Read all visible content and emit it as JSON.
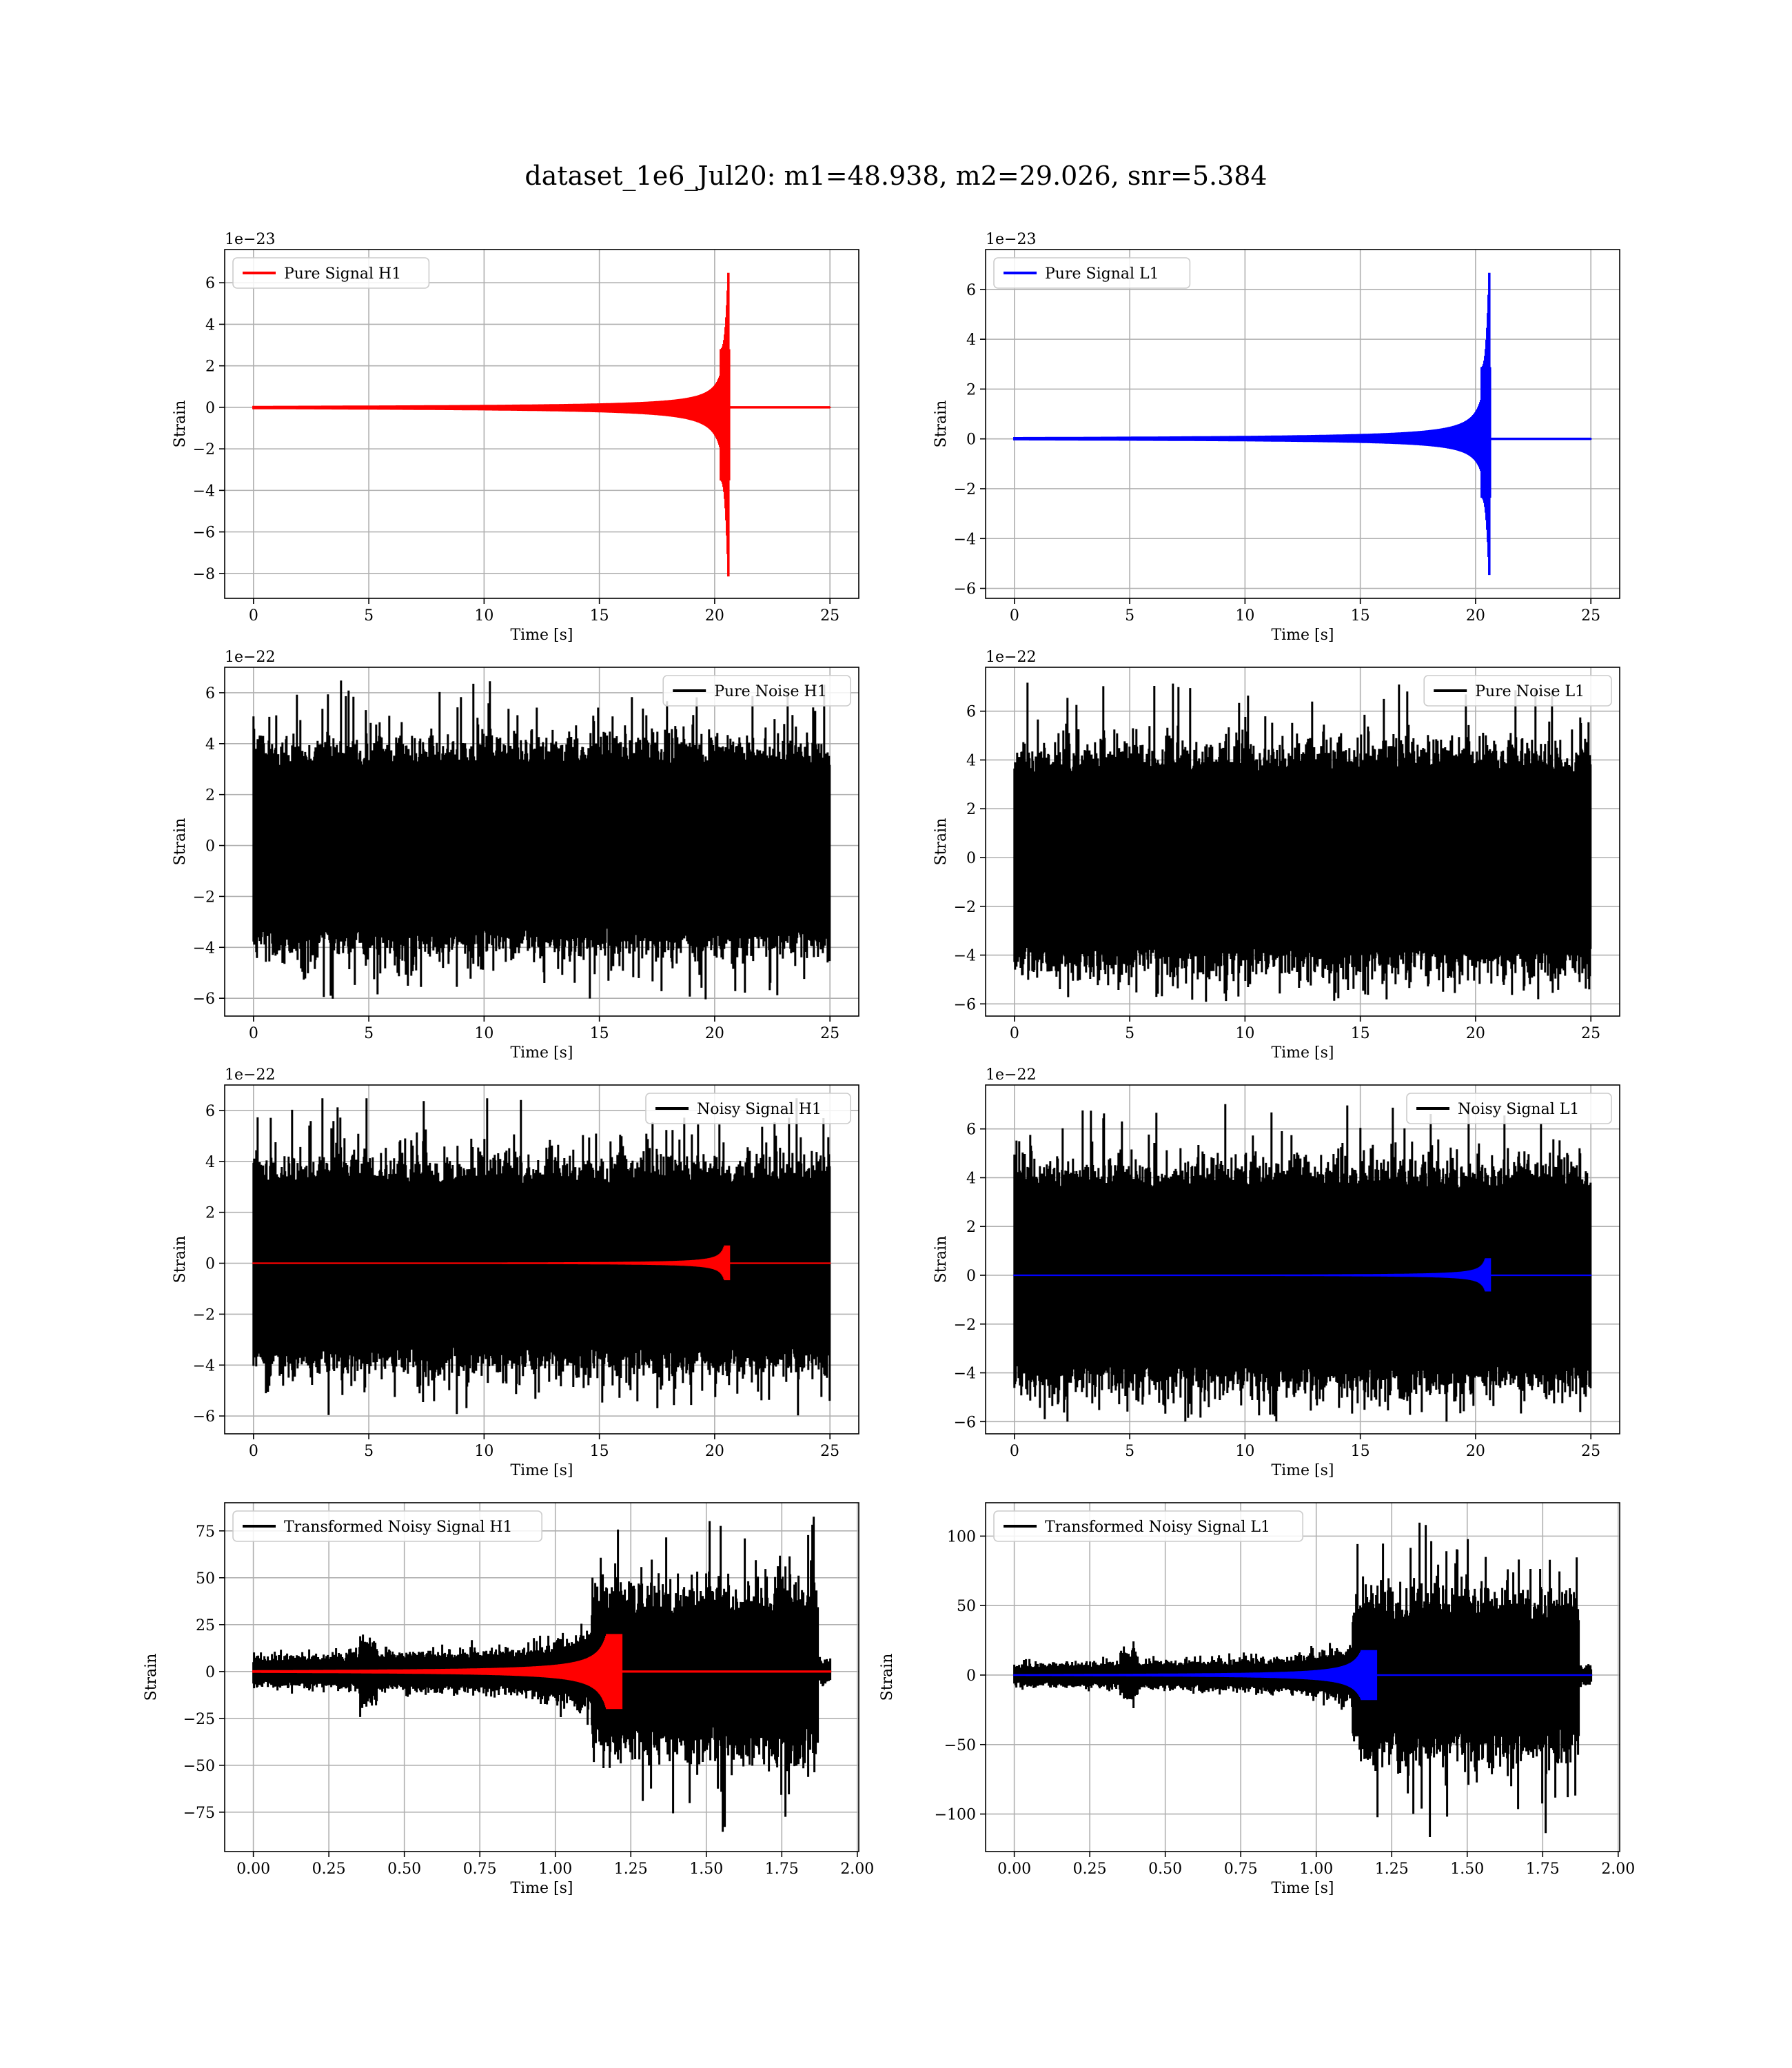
{
  "figure": {
    "title": "dataset_1e6_Jul20: m1=48.938, m2=29.026, snr=5.384"
  },
  "colors": {
    "h1": "#ff0000",
    "l1": "#0000ff",
    "noise": "#000000"
  },
  "chart_data": [
    {
      "id": "pure-signal-h1",
      "type": "line",
      "detector": "H1",
      "kind": "signal",
      "legend": "Pure Signal H1",
      "legend_position": "upper-left",
      "xlabel": "Time [s]",
      "ylabel": "Strain",
      "offset_text": "1e−23",
      "xlim": [
        -1.25,
        26.25
      ],
      "ylim": [
        -9.2,
        7.6
      ],
      "xticks": [
        0,
        5,
        10,
        15,
        20,
        25
      ],
      "yticks": [
        -8,
        -6,
        -4,
        -2,
        0,
        2,
        4,
        6
      ],
      "yticklabels": [
        "−8",
        "−6",
        "−4",
        "−2",
        "0",
        "2",
        "4",
        "6"
      ],
      "x_range": [
        0,
        25
      ],
      "merger_time": 20.6,
      "peak_positive": 7.0,
      "peak_negative": -8.8,
      "grid": true
    },
    {
      "id": "pure-signal-l1",
      "type": "line",
      "detector": "L1",
      "kind": "signal",
      "legend": "Pure Signal L1",
      "legend_position": "upper-left",
      "xlabel": "Time [s]",
      "ylabel": "Strain",
      "offset_text": "1e−23",
      "xlim": [
        -1.25,
        26.25
      ],
      "ylim": [
        -6.4,
        7.6
      ],
      "xticks": [
        0,
        5,
        10,
        15,
        20,
        25
      ],
      "yticks": [
        -6,
        -4,
        -2,
        0,
        2,
        4,
        6
      ],
      "yticklabels": [
        "−6",
        "−4",
        "−2",
        "0",
        "2",
        "4",
        "6"
      ],
      "x_range": [
        0,
        25
      ],
      "merger_time": 20.6,
      "peak_positive": 7.2,
      "peak_negative": -5.9,
      "grid": true
    },
    {
      "id": "pure-noise-h1",
      "type": "line",
      "detector": "H1",
      "kind": "noise",
      "legend": "Pure Noise H1",
      "legend_position": "upper-right",
      "xlabel": "Time [s]",
      "ylabel": "Strain",
      "offset_text": "1e−22",
      "xlim": [
        -1.25,
        26.25
      ],
      "ylim": [
        -6.7,
        7.0
      ],
      "xticks": [
        0,
        5,
        10,
        15,
        20,
        25
      ],
      "yticks": [
        -6,
        -4,
        -2,
        0,
        2,
        4,
        6
      ],
      "yticklabels": [
        "−6",
        "−4",
        "−2",
        "0",
        "2",
        "4",
        "6"
      ],
      "x_range": [
        0,
        25
      ],
      "noise_max": 6.5,
      "noise_min": -6.1,
      "grid": true
    },
    {
      "id": "pure-noise-l1",
      "type": "line",
      "detector": "L1",
      "kind": "noise",
      "legend": "Pure Noise L1",
      "legend_position": "upper-right",
      "xlabel": "Time [s]",
      "ylabel": "Strain",
      "offset_text": "1e−22",
      "xlim": [
        -1.25,
        26.25
      ],
      "ylim": [
        -6.5,
        7.8
      ],
      "xticks": [
        0,
        5,
        10,
        15,
        20,
        25
      ],
      "yticks": [
        -6,
        -4,
        -2,
        0,
        2,
        4,
        6
      ],
      "yticklabels": [
        "−6",
        "−4",
        "−2",
        "0",
        "2",
        "4",
        "6"
      ],
      "x_range": [
        0,
        25
      ],
      "noise_max": 7.2,
      "noise_min": -6.0,
      "grid": true
    },
    {
      "id": "noisy-signal-h1",
      "type": "line",
      "detector": "H1",
      "kind": "noisy",
      "legend": "Noisy Signal H1",
      "legend_position": "upper-right",
      "xlabel": "Time [s]",
      "ylabel": "Strain",
      "offset_text": "1e−22",
      "xlim": [
        -1.25,
        26.25
      ],
      "ylim": [
        -6.7,
        7.0
      ],
      "xticks": [
        0,
        5,
        10,
        15,
        20,
        25
      ],
      "yticks": [
        -6,
        -4,
        -2,
        0,
        2,
        4,
        6
      ],
      "yticklabels": [
        "−6",
        "−4",
        "−2",
        "0",
        "2",
        "4",
        "6"
      ],
      "x_range": [
        0,
        25
      ],
      "noise_max": 6.5,
      "noise_min": -6.1,
      "merger_time": 20.6,
      "signal_peak": 0.7,
      "grid": true
    },
    {
      "id": "noisy-signal-l1",
      "type": "line",
      "detector": "L1",
      "kind": "noisy",
      "legend": "Noisy Signal L1",
      "legend_position": "upper-right",
      "xlabel": "Time [s]",
      "ylabel": "Strain",
      "offset_text": "1e−22",
      "xlim": [
        -1.25,
        26.25
      ],
      "ylim": [
        -6.5,
        7.8
      ],
      "xticks": [
        0,
        5,
        10,
        15,
        20,
        25
      ],
      "yticks": [
        -6,
        -4,
        -2,
        0,
        2,
        4,
        6
      ],
      "yticklabels": [
        "−6",
        "−4",
        "−2",
        "0",
        "2",
        "4",
        "6"
      ],
      "x_range": [
        0,
        25
      ],
      "noise_max": 7.2,
      "noise_min": -6.0,
      "merger_time": 20.6,
      "signal_peak": 0.7,
      "grid": true
    },
    {
      "id": "transformed-h1",
      "type": "line",
      "detector": "H1",
      "kind": "transformed",
      "legend": "Transformed Noisy Signal H1",
      "legend_position": "upper-left",
      "xlabel": "Time [s]",
      "ylabel": "Strain",
      "offset_text": "",
      "xlim": [
        -0.095,
        2.005
      ],
      "ylim": [
        -96,
        90
      ],
      "xticks": [
        0,
        0.25,
        0.5,
        0.75,
        1.0,
        1.25,
        1.5,
        1.75,
        2.0
      ],
      "xticklabels": [
        "0.00",
        "0.25",
        "0.50",
        "0.75",
        "1.00",
        "1.25",
        "1.50",
        "1.75",
        "2.00"
      ],
      "yticks": [
        -75,
        -50,
        -25,
        0,
        25,
        50,
        75
      ],
      "yticklabels": [
        "−75",
        "−50",
        "−25",
        "0",
        "25",
        "50",
        "75"
      ],
      "x_range": [
        0,
        1.91
      ],
      "jump_time": 1.12,
      "noise_end": 1.87,
      "noise_max": 85,
      "noise_min": -87,
      "signal_center": 1.2,
      "signal_peak": 20,
      "grid": true
    },
    {
      "id": "transformed-l1",
      "type": "line",
      "detector": "L1",
      "kind": "transformed",
      "legend": "Transformed Noisy Signal L1",
      "legend_position": "upper-left",
      "xlabel": "Time [s]",
      "ylabel": "Strain",
      "offset_text": "",
      "xlim": [
        -0.095,
        2.005
      ],
      "ylim": [
        -127,
        124
      ],
      "xticks": [
        0,
        0.25,
        0.5,
        0.75,
        1.0,
        1.25,
        1.5,
        1.75,
        2.0
      ],
      "xticklabels": [
        "0.00",
        "0.25",
        "0.50",
        "0.75",
        "1.00",
        "1.25",
        "1.50",
        "1.75",
        "2.00"
      ],
      "yticks": [
        -100,
        -50,
        0,
        50,
        100
      ],
      "yticklabels": [
        "−100",
        "−50",
        "0",
        "50",
        "100"
      ],
      "x_range": [
        0,
        1.91
      ],
      "jump_time": 1.12,
      "noise_end": 1.87,
      "noise_max": 112,
      "noise_min": -117,
      "signal_center": 1.18,
      "signal_peak": 18,
      "grid": true
    }
  ]
}
